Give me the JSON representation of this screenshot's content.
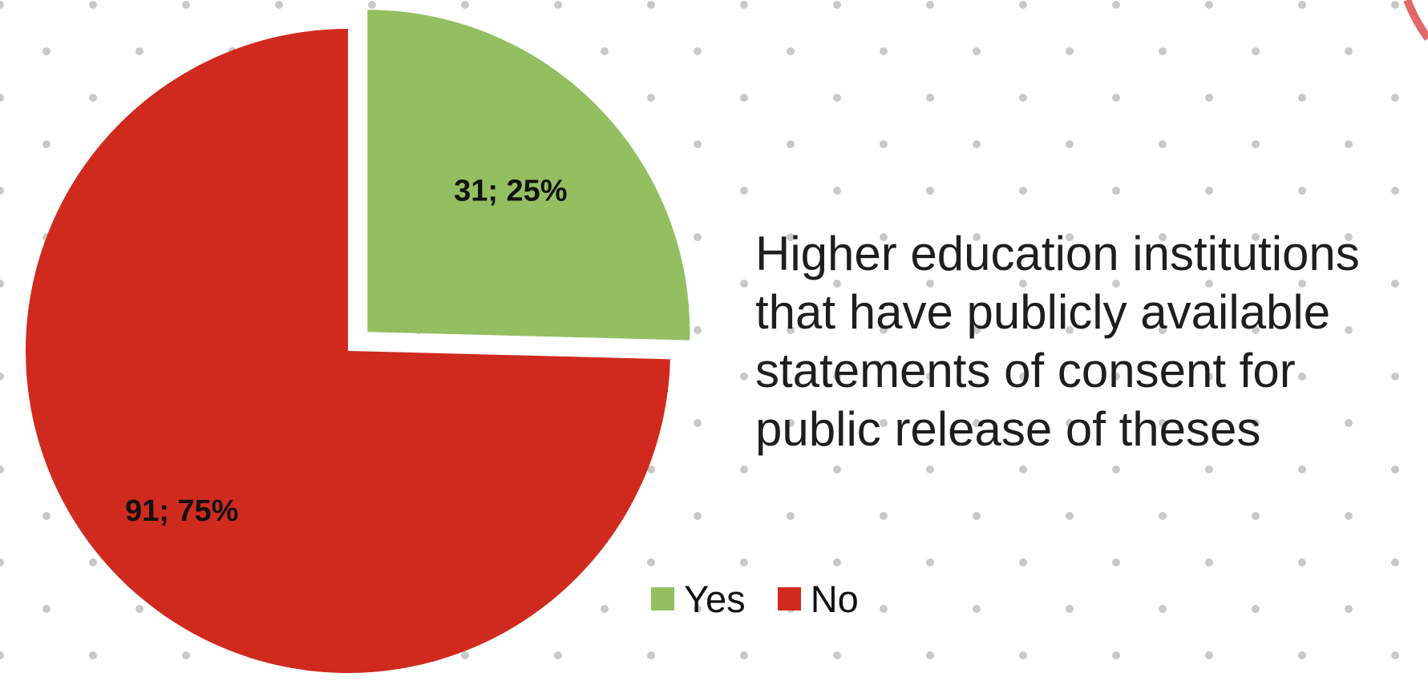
{
  "colors": {
    "background": "#ffffff",
    "dot": "#c9c9c9",
    "yes": "#93bf61",
    "no": "#d02a1e",
    "accent_arc": "#e2686a"
  },
  "chart_data": {
    "type": "pie",
    "title": "Higher education institutions that have publicly available statements of consent for public release of theses",
    "title_lines": [
      "Higher education institutions",
      "that have publicly available",
      "statements of consent for",
      "public release of theses"
    ],
    "slices": [
      {
        "name": "Yes",
        "value": 31,
        "percent": 25,
        "label": "31; 25%",
        "color": "#93bf61",
        "exploded": true
      },
      {
        "name": "No",
        "value": 91,
        "percent": 75,
        "label": "91; 75%",
        "color": "#d02a1e",
        "exploded": false
      }
    ],
    "legend": {
      "placement": "bottom",
      "entries": [
        {
          "label": "Yes",
          "color": "#93bf61"
        },
        {
          "label": "No",
          "color": "#d02a1e"
        }
      ]
    }
  }
}
